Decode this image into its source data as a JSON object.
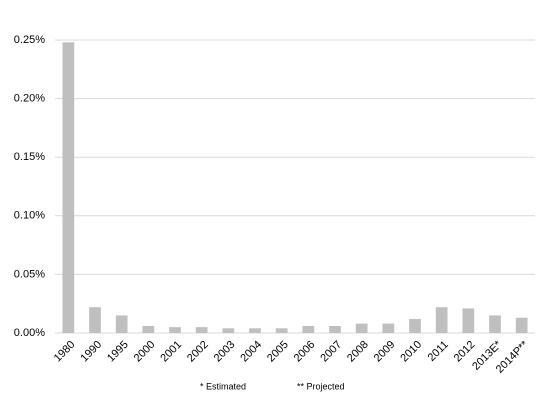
{
  "chart_data": {
    "type": "bar",
    "categories": [
      "1980",
      "1990",
      "1995",
      "2000",
      "2001",
      "2002",
      "2003",
      "2004",
      "2005",
      "2006",
      "2007",
      "2008",
      "2009",
      "2010",
      "2011",
      "2012",
      "2013E*",
      "2014P**"
    ],
    "values": [
      0.248,
      0.022,
      0.015,
      0.006,
      0.005,
      0.005,
      0.004,
      0.004,
      0.004,
      0.006,
      0.006,
      0.008,
      0.008,
      0.012,
      0.022,
      0.021,
      0.015,
      0.013
    ],
    "color": "#bfbfbf",
    "ylim": [
      0,
      0.25
    ],
    "yticks": [
      {
        "value": 0,
        "label": "0.00%"
      },
      {
        "value": 0.05,
        "label": "0.05%"
      },
      {
        "value": 0.1,
        "label": "0.10%"
      },
      {
        "value": 0.15,
        "label": "0.15%"
      },
      {
        "value": 0.2,
        "label": "0.20%"
      },
      {
        "value": 0.25,
        "label": "0.25%"
      }
    ],
    "grid": true,
    "annotations": [
      "* Estimated",
      "** Projected"
    ]
  }
}
